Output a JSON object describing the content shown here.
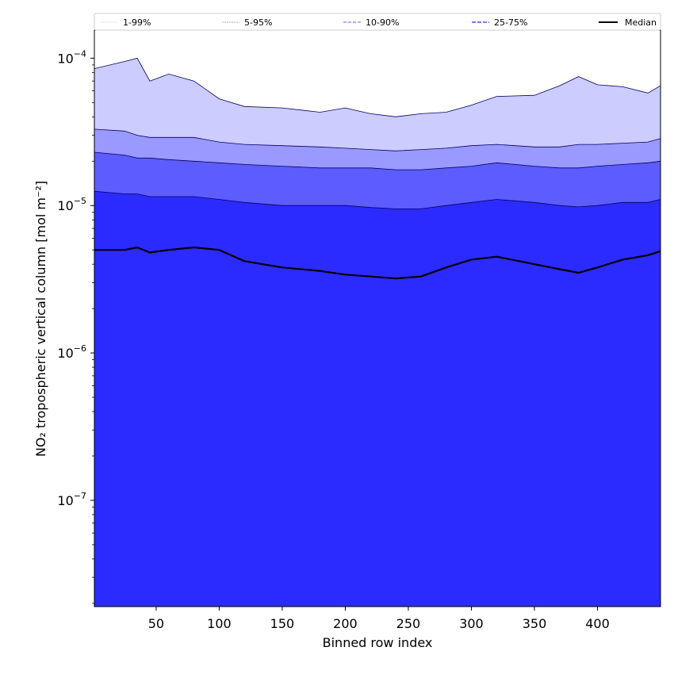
{
  "chart_data": {
    "type": "area",
    "xlabel": "Binned row index",
    "ylabel": "NO₂ tropospheric vertical column [mol m⁻²]",
    "xlim": [
      1,
      450
    ],
    "ylim": [
      1.9e-08,
      0.000155
    ],
    "yscale": "log",
    "grid": false,
    "legend_position": "top",
    "x_ticks": [
      {
        "v": 50,
        "label": "50"
      },
      {
        "v": 100,
        "label": "100"
      },
      {
        "v": 150,
        "label": "150"
      },
      {
        "v": 200,
        "label": "200"
      },
      {
        "v": 250,
        "label": "250"
      },
      {
        "v": 300,
        "label": "300"
      },
      {
        "v": 350,
        "label": "350"
      },
      {
        "v": 400,
        "label": "400"
      }
    ],
    "y_ticks": [
      {
        "v": 1e-07,
        "base": "10",
        "exp": "−7"
      },
      {
        "v": 1e-06,
        "base": "10",
        "exp": "−6"
      },
      {
        "v": 1e-05,
        "base": "10",
        "exp": "−5"
      },
      {
        "v": 0.0001,
        "base": "10",
        "exp": "−4"
      }
    ],
    "x": [
      1,
      25,
      35,
      45,
      60,
      80,
      100,
      120,
      150,
      180,
      200,
      220,
      240,
      260,
      280,
      300,
      320,
      350,
      370,
      385,
      400,
      420,
      440,
      450
    ],
    "bands": [
      {
        "name": "1-99%",
        "color": "#ccccff",
        "line_color": "#e0e0e0",
        "lower": [
          1.9e-08,
          1.9e-08,
          1.9e-08,
          1.9e-08,
          1.9e-08,
          1.9e-08,
          1.9e-08,
          1.9e-08,
          1.9e-08,
          1.9e-08,
          1.9e-08,
          1.9e-08,
          1.9e-08,
          1.9e-08,
          1.9e-08,
          1.9e-08,
          1.9e-08,
          1.9e-08,
          1.9e-08,
          1.9e-08,
          1.9e-08,
          1.9e-08,
          1.9e-08,
          1.9e-08
        ],
        "upper": [
          8.5e-05,
          9.5e-05,
          0.0001,
          7e-05,
          7.8e-05,
          7e-05,
          5.3e-05,
          4.7e-05,
          4.6e-05,
          4.3e-05,
          4.6e-05,
          4.2e-05,
          4e-05,
          4.2e-05,
          4.3e-05,
          4.8e-05,
          5.5e-05,
          5.6e-05,
          6.5e-05,
          7.5e-05,
          6.6e-05,
          6.4e-05,
          5.8e-05,
          6.5e-05
        ]
      },
      {
        "name": "5-95%",
        "color": "#9999ff",
        "line_color": "#b3b3b3",
        "lower": [
          1.9e-08,
          1.9e-08,
          1.9e-08,
          1.9e-08,
          1.9e-08,
          1.9e-08,
          1.9e-08,
          1.9e-08,
          1.9e-08,
          1.9e-08,
          1.9e-08,
          1.9e-08,
          1.9e-08,
          1.9e-08,
          1.9e-08,
          1.9e-08,
          1.9e-08,
          1.9e-08,
          1.9e-08,
          1.9e-08,
          1.9e-08,
          1.9e-08,
          1.9e-08,
          1.9e-08
        ],
        "upper": [
          3.3e-05,
          3.2e-05,
          3e-05,
          2.9e-05,
          2.9e-05,
          2.9e-05,
          2.7e-05,
          2.6e-05,
          2.55e-05,
          2.5e-05,
          2.45e-05,
          2.4e-05,
          2.35e-05,
          2.4e-05,
          2.45e-05,
          2.55e-05,
          2.6e-05,
          2.5e-05,
          2.5e-05,
          2.6e-05,
          2.6e-05,
          2.65e-05,
          2.7e-05,
          2.85e-05
        ]
      },
      {
        "name": "10-90%",
        "color": "#5c5cff",
        "line_color": "#8080ff",
        "lower": [
          1.9e-08,
          1.9e-08,
          1.9e-08,
          1.9e-08,
          1.9e-08,
          1.9e-08,
          1.9e-08,
          1.9e-08,
          1.9e-08,
          1.9e-08,
          1.9e-08,
          1.9e-08,
          1.9e-08,
          1.9e-08,
          1.9e-08,
          1.9e-08,
          1.9e-08,
          1.9e-08,
          1.9e-08,
          1.9e-08,
          1.9e-08,
          1.9e-08,
          1.9e-08,
          1.9e-08
        ],
        "upper": [
          2.3e-05,
          2.2e-05,
          2.1e-05,
          2.1e-05,
          2.05e-05,
          2e-05,
          1.95e-05,
          1.9e-05,
          1.85e-05,
          1.8e-05,
          1.8e-05,
          1.8e-05,
          1.75e-05,
          1.75e-05,
          1.8e-05,
          1.85e-05,
          1.95e-05,
          1.85e-05,
          1.8e-05,
          1.8e-05,
          1.85e-05,
          1.9e-05,
          1.95e-05,
          2e-05
        ]
      },
      {
        "name": "25-75%",
        "color": "#2b2bff",
        "line_color": "#5050ff",
        "lower": [
          1.9e-08,
          1.9e-08,
          1.9e-08,
          1.9e-08,
          1.9e-08,
          1.9e-08,
          1.9e-08,
          1.9e-08,
          1.9e-08,
          1.9e-08,
          1.9e-08,
          1.9e-08,
          1.9e-08,
          1.9e-08,
          1.9e-08,
          1.9e-08,
          1.9e-08,
          1.9e-08,
          1.9e-08,
          1.9e-08,
          1.9e-08,
          1.9e-08,
          1.9e-08,
          1.9e-08
        ],
        "upper": [
          1.25e-05,
          1.2e-05,
          1.2e-05,
          1.15e-05,
          1.15e-05,
          1.15e-05,
          1.1e-05,
          1.05e-05,
          1e-05,
          1e-05,
          1e-05,
          9.7e-06,
          9.5e-06,
          9.5e-06,
          1e-05,
          1.05e-05,
          1.1e-05,
          1.05e-05,
          1e-05,
          9.8e-06,
          1e-05,
          1.05e-05,
          1.05e-05,
          1.1e-05
        ]
      }
    ],
    "median": {
      "name": "Median",
      "color": "#000000",
      "values": [
        5e-06,
        5e-06,
        5.2e-06,
        4.8e-06,
        5e-06,
        5.2e-06,
        5e-06,
        4.2e-06,
        3.8e-06,
        3.6e-06,
        3.4e-06,
        3.3e-06,
        3.2e-06,
        3.3e-06,
        3.8e-06,
        4.3e-06,
        4.5e-06,
        4e-06,
        3.7e-06,
        3.5e-06,
        3.8e-06,
        4.3e-06,
        4.6e-06,
        4.9e-06
      ]
    },
    "legend": [
      "1-99%",
      "5-95%",
      "10-90%",
      "25-75%",
      "Median"
    ]
  }
}
